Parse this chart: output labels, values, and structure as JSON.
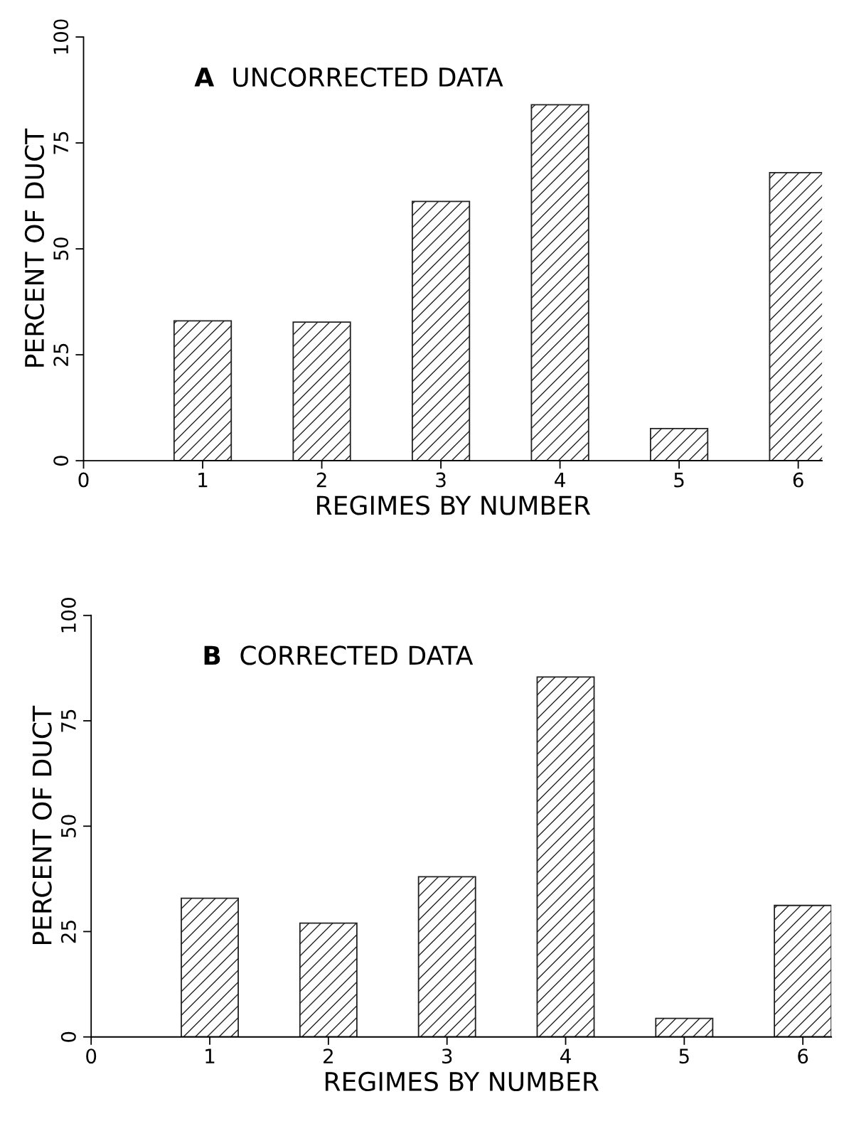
{
  "chart_data": [
    {
      "type": "bar",
      "title": "UNCORRECTED DATA",
      "annotations": [
        "A"
      ],
      "xlabel": "REGIMES BY NUMBER",
      "ylabel": "PERCENT OF DUCT",
      "x": [
        1,
        2,
        3,
        4,
        5,
        6
      ],
      "values": [
        33,
        32.7,
        61.2,
        84,
        7.6,
        68
      ],
      "color": "#222222",
      "xlim": [
        0,
        6.2
      ],
      "xticks": [
        0,
        1,
        2,
        3,
        4,
        5,
        6
      ],
      "ylim": [
        0,
        100
      ],
      "yticks": [
        0,
        25,
        50,
        75,
        100
      ],
      "grid": false,
      "legend": false
    },
    {
      "type": "bar",
      "title": "CORRECTED DATA",
      "annotations": [
        "B"
      ],
      "xlabel": "REGIMES BY NUMBER",
      "ylabel": "PERCENT OF DUCT",
      "x": [
        1,
        2,
        3,
        4,
        5,
        6
      ],
      "values": [
        32.9,
        27,
        38,
        85.4,
        4.4,
        31.2
      ],
      "color": "#222222",
      "xlim": [
        0,
        6.24
      ],
      "xticks": [
        0,
        1,
        2,
        3,
        4,
        5,
        6
      ],
      "ylim": [
        0,
        100
      ],
      "yticks": [
        0,
        25,
        50,
        75,
        100
      ],
      "grid": false,
      "legend": false
    }
  ]
}
